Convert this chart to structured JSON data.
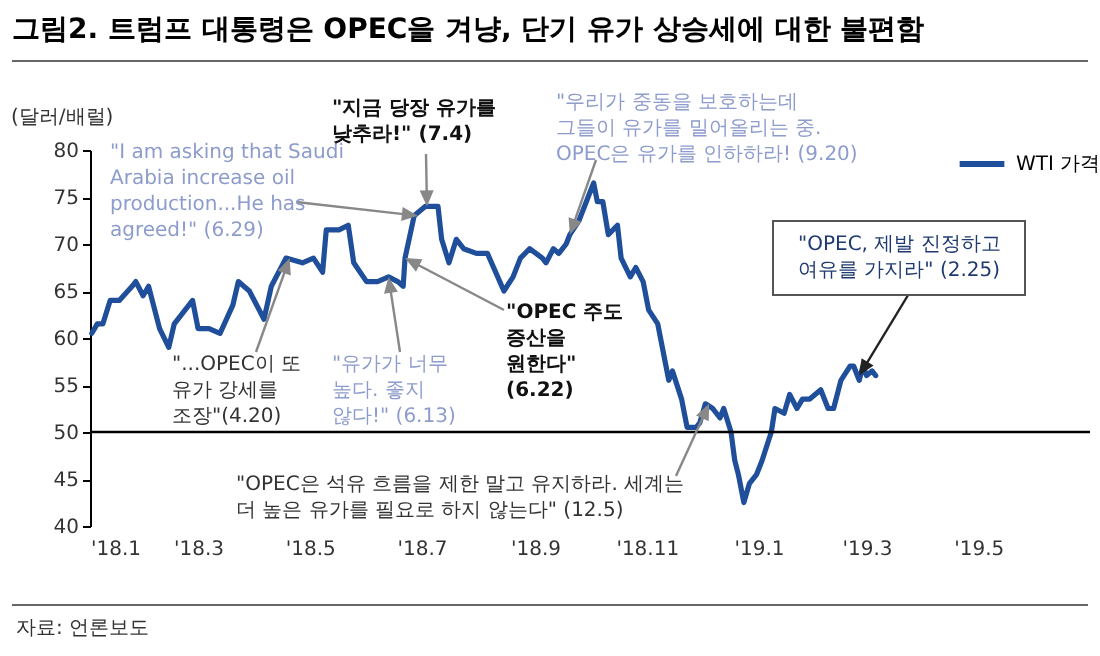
{
  "chart_data": {
    "type": "line",
    "title": "그림2. 트럼프 대통령은 OPEC을 겨냥, 단기 유가 상승세에 대한 불편함",
    "ylabel": "(달러/배럴)",
    "series": [
      {
        "name": "WTI 가격",
        "color": "#1f4e9a",
        "x": [
          "2018-01-02",
          "2018-01-05",
          "2018-01-08",
          "2018-01-12",
          "2018-01-17",
          "2018-01-24",
          "2018-01-26",
          "2018-01-30",
          "2018-02-02",
          "2018-02-08",
          "2018-02-13",
          "2018-02-16",
          "2018-02-26",
          "2018-03-01",
          "2018-03-07",
          "2018-03-13",
          "2018-03-20",
          "2018-03-23",
          "2018-03-29",
          "2018-04-06",
          "2018-04-10",
          "2018-04-18",
          "2018-04-27",
          "2018-05-03",
          "2018-05-08",
          "2018-05-10",
          "2018-05-17",
          "2018-05-22",
          "2018-05-25",
          "2018-06-01",
          "2018-06-07",
          "2018-06-13",
          "2018-06-18",
          "2018-06-21",
          "2018-06-22",
          "2018-06-27",
          "2018-07-03",
          "2018-07-06",
          "2018-07-10",
          "2018-07-12",
          "2018-07-16",
          "2018-07-20",
          "2018-07-24",
          "2018-07-31",
          "2018-08-06",
          "2018-08-15",
          "2018-08-20",
          "2018-08-24",
          "2018-08-29",
          "2018-09-05",
          "2018-09-07",
          "2018-09-11",
          "2018-09-14",
          "2018-09-18",
          "2018-09-20",
          "2018-09-25",
          "2018-10-01",
          "2018-10-03",
          "2018-10-05",
          "2018-10-08",
          "2018-10-11",
          "2018-10-16",
          "2018-10-18",
          "2018-10-23",
          "2018-10-26",
          "2018-10-30",
          "2018-11-02",
          "2018-11-07",
          "2018-11-13",
          "2018-11-15",
          "2018-11-20",
          "2018-11-23",
          "2018-11-28",
          "2018-11-30",
          "2018-12-03",
          "2018-12-07",
          "2018-12-11",
          "2018-12-13",
          "2018-12-17",
          "2018-12-19",
          "2018-12-21",
          "2018-12-24",
          "2018-12-27",
          "2018-12-31",
          "2019-01-03",
          "2019-01-08",
          "2019-01-10",
          "2019-01-15",
          "2019-01-18",
          "2019-01-22",
          "2019-01-25",
          "2019-01-29",
          "2019-02-04",
          "2019-02-08",
          "2019-02-11",
          "2019-02-15",
          "2019-02-20",
          "2019-02-22",
          "2019-02-25",
          "2019-02-27",
          "2019-03-01",
          "2019-03-04",
          "2019-03-06"
        ],
        "values": [
          60.5,
          61.5,
          61.5,
          64,
          64,
          65.5,
          66,
          64.5,
          65.5,
          61,
          59,
          61.5,
          64,
          61,
          61,
          60.5,
          63.5,
          66,
          65,
          62,
          65.5,
          68.5,
          68,
          68.5,
          67,
          71.5,
          71.5,
          72,
          68,
          66,
          66,
          66.5,
          66,
          65.5,
          68.5,
          73,
          74,
          74,
          74,
          70.5,
          68,
          70.5,
          69.5,
          69,
          69,
          65,
          66.5,
          68.5,
          69.5,
          68.5,
          68,
          69.5,
          69,
          70,
          71,
          72.5,
          75.5,
          76.5,
          74.5,
          74.5,
          71,
          72,
          68.5,
          66.5,
          67.5,
          66,
          63,
          61.5,
          55.5,
          56.5,
          53.5,
          50.5,
          50.5,
          51,
          53,
          52.5,
          51.5,
          52.5,
          50,
          47,
          45.5,
          42.5,
          44.5,
          45.5,
          47,
          50,
          52.5,
          52,
          54,
          52.5,
          53.5,
          53.5,
          54.5,
          52.5,
          52.5,
          55.5,
          57,
          57,
          55.5,
          57,
          56,
          56.5,
          56
        ]
      }
    ],
    "xlim": [
      "2018-01-01",
      "2019-07-01"
    ],
    "xticks": [
      {
        "value": "2018-01-01",
        "label": "'18.1"
      },
      {
        "value": "2018-03-01",
        "label": "'18.3"
      },
      {
        "value": "2018-05-01",
        "label": "'18.5"
      },
      {
        "value": "2018-07-01",
        "label": "'18.7"
      },
      {
        "value": "2018-09-01",
        "label": "'18.9"
      },
      {
        "value": "2018-11-01",
        "label": "'18.11"
      },
      {
        "value": "2019-01-01",
        "label": "'19.1"
      },
      {
        "value": "2019-03-01",
        "label": "'19.3"
      },
      {
        "value": "2019-05-01",
        "label": "'19.5"
      }
    ],
    "ylim": [
      40,
      80
    ],
    "yticks": [
      40,
      45,
      50,
      55,
      60,
      65,
      70,
      75,
      80
    ],
    "ref_lines": [
      {
        "axis": "y",
        "value": 50,
        "color": "#000000"
      }
    ],
    "grid": false,
    "legend": "top right",
    "annotations": [
      {
        "text": "\"I am asking that Saudi\nArabia increase oil\nproduction...He has\nagreed!\" (6.29)",
        "x": "2018-06-29",
        "y": 73
      },
      {
        "text": "\"지금 당장 유가를\n낮추라!\" (7.4)",
        "x": "2018-07-04",
        "y": 74
      },
      {
        "text": "\"우리가 중동을 보호하는데\n그들이 유가를 밀어올리는 중.\nOPEC은 유가를 인하하라! (9.20)",
        "x": "2018-09-20",
        "y": 71
      },
      {
        "text": "\"...OPEC이 또\n유가 강세를\n조장\"(4.20)",
        "x": "2018-04-20",
        "y": 68.5
      },
      {
        "text": "\"유가가 너무\n높다. 좋지\n않다!\" (6.13)",
        "x": "2018-06-13",
        "y": 66.5
      },
      {
        "text": "\"OPEC 주도\n증산을\n원한다\"\n(6.22)",
        "x": "2018-06-22",
        "y": 68.5
      },
      {
        "text": "\"OPEC은 석유 흐름을 제한 말고 유지하라. 세계는\n더 높은 유가를 필요로 하지 않는다\" (12.5)",
        "x": "2018-12-05",
        "y": 53
      },
      {
        "text": "\"OPEC, 제발 진정하고\n여유를 가지라\" (2.25)",
        "x": "2019-02-25",
        "y": 56
      },
      "자료: 언론보도"
    ]
  }
}
